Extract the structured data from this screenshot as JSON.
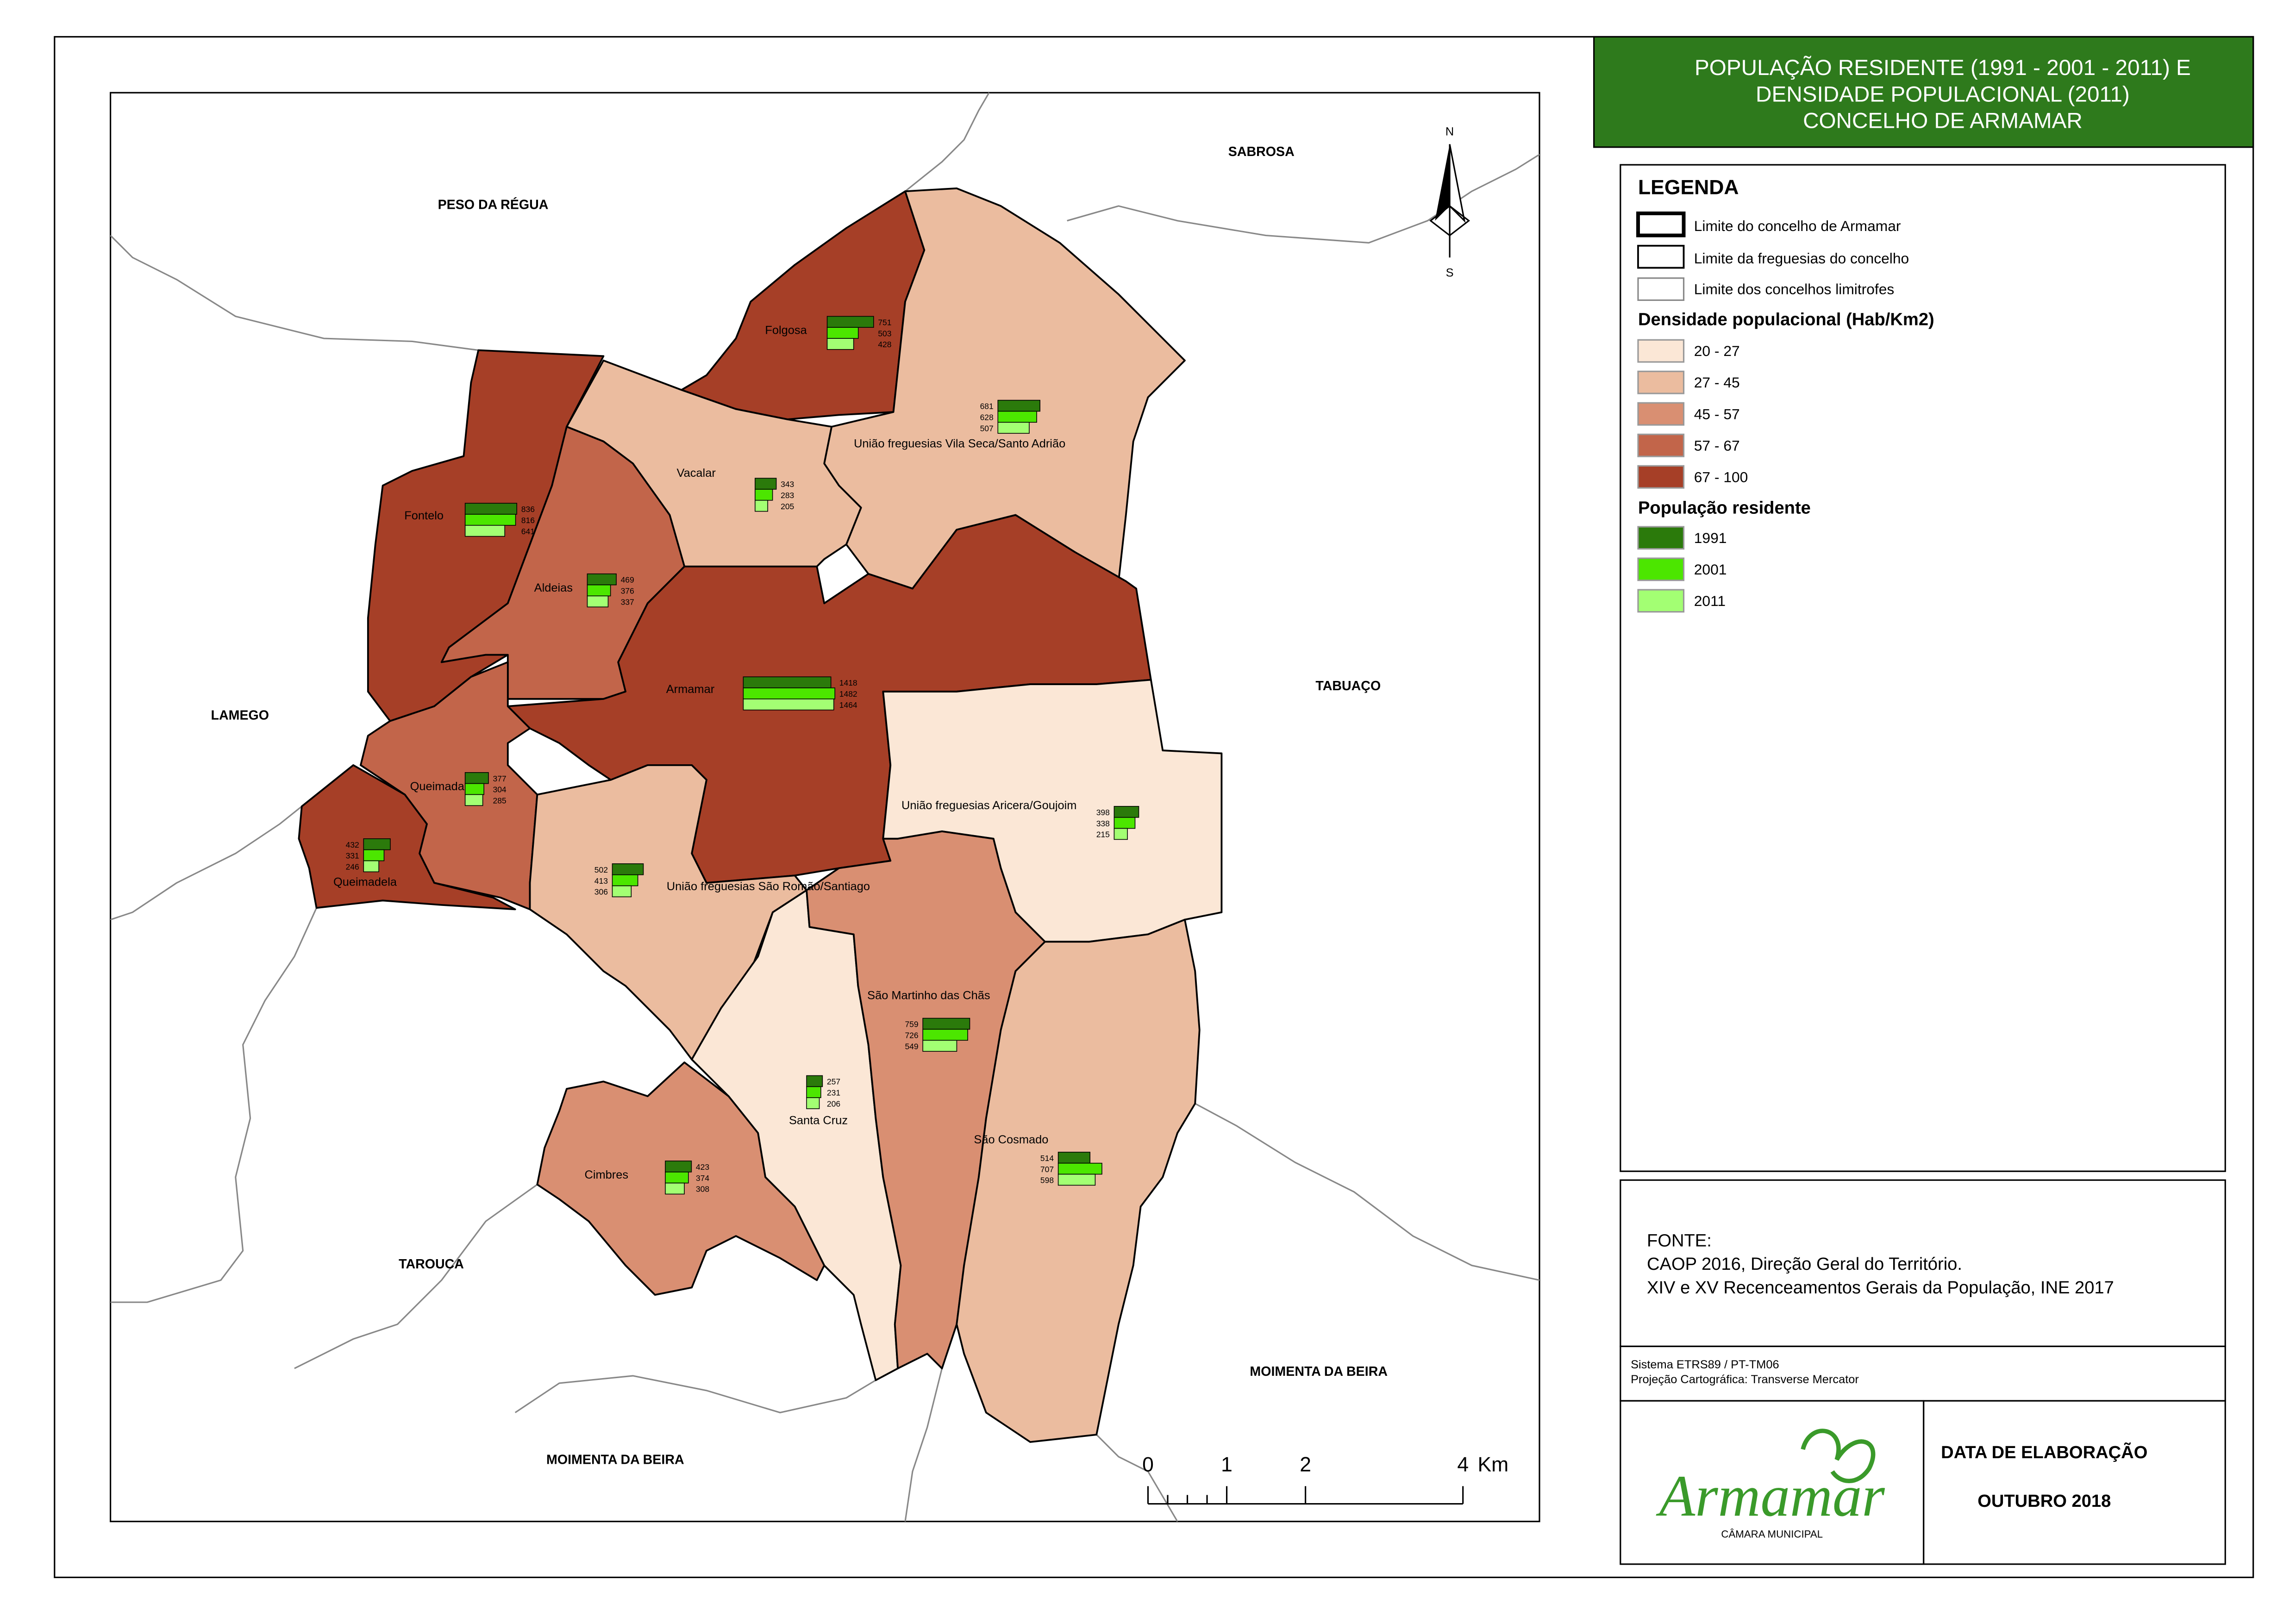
{
  "title_lines": [
    "POPULAÇÃO RESIDENTE (1991 - 2001 - 2011) E",
    "DENSIDADE POPULACIONAL (2011)",
    "CONCELHO DE ARMAMAR"
  ],
  "neighbors": [
    "PESO DA RÉGUA",
    "SABROSA",
    "LAMEGO",
    "TABUAÇO",
    "TAROUCA",
    "MOIMENTA DA BEIRA",
    "MOIMENTA DA BEIRA"
  ],
  "parishes": [
    {
      "name": "Folgosa",
      "density_class": 4,
      "population": [
        751,
        503,
        428
      ]
    },
    {
      "name": "União freguesias Vila Seca/Santo Adrião",
      "density_class": 1,
      "population": [
        681,
        628,
        507
      ]
    },
    {
      "name": "Vacalar",
      "density_class": 1,
      "population": [
        343,
        283,
        205
      ]
    },
    {
      "name": "Fontelo",
      "density_class": 4,
      "population": [
        836,
        816,
        641
      ]
    },
    {
      "name": "Aldeias",
      "density_class": 3,
      "population": [
        469,
        376,
        337
      ]
    },
    {
      "name": "Armamar",
      "density_class": 4,
      "population": [
        1418,
        1482,
        1464
      ]
    },
    {
      "name": "União freguesias Aricera/Goujoim",
      "density_class": 0,
      "population": [
        398,
        338,
        215
      ]
    },
    {
      "name": "Queimada",
      "density_class": 3,
      "population": [
        377,
        304,
        285
      ]
    },
    {
      "name": "Queimadela",
      "density_class": 4,
      "population": [
        432,
        331,
        246
      ]
    },
    {
      "name": "União freguesias São Romão/Santiago",
      "density_class": 1,
      "population": [
        502,
        413,
        306
      ]
    },
    {
      "name": "Santa Cruz",
      "density_class": 0,
      "population": [
        257,
        231,
        206
      ]
    },
    {
      "name": "São Martinho das Chãs",
      "density_class": 2,
      "population": [
        759,
        726,
        549
      ]
    },
    {
      "name": "São Cosmado",
      "density_class": 1,
      "population": [
        514,
        707,
        598
      ]
    },
    {
      "name": "Cimbres",
      "density_class": 2,
      "population": [
        423,
        374,
        308
      ]
    }
  ],
  "legend": {
    "title": "LEGENDA",
    "boundaries": [
      "Limite do concelho de Armamar",
      "Limite da freguesias do concelho",
      "Limite dos concelhos limitrofes"
    ],
    "density_title": "Densidade populacional (Hab/Km2)",
    "density_classes": [
      {
        "label": "20 - 27",
        "color": "#fbe7d6"
      },
      {
        "label": "27 - 45",
        "color": "#ebbc9f"
      },
      {
        "label": "45 - 57",
        "color": "#d98f72"
      },
      {
        "label": "57 - 67",
        "color": "#c2654a"
      },
      {
        "label": "67 - 100",
        "color": "#a63f27"
      }
    ],
    "population_title": "População residente",
    "population_series": [
      {
        "label": "1991",
        "color": "#2b7a0b"
      },
      {
        "label": "2001",
        "color": "#4ce600"
      },
      {
        "label": "2011",
        "color": "#a3ff73"
      }
    ]
  },
  "north": {
    "n": "N",
    "s": "S"
  },
  "scale_bar": {
    "ticks": [
      0,
      1,
      2,
      4
    ],
    "unit": "Km"
  },
  "source": {
    "title": "FONTE:",
    "lines": [
      "CAOP 2016, Direção Geral do Território.",
      "XIV e XV Recenceamentos Gerais da População, INE 2017"
    ]
  },
  "projection": [
    "Sistema ETRS89 / PT-TM06",
    "Projeção Cartográfica: Transverse Mercator"
  ],
  "logo": {
    "name": "Armamar",
    "subtitle": "CÂMARA MUNICIPAL"
  },
  "date": {
    "title": "DATA DE ELABORAÇÃO",
    "value": "OUTUBRO 2018"
  }
}
